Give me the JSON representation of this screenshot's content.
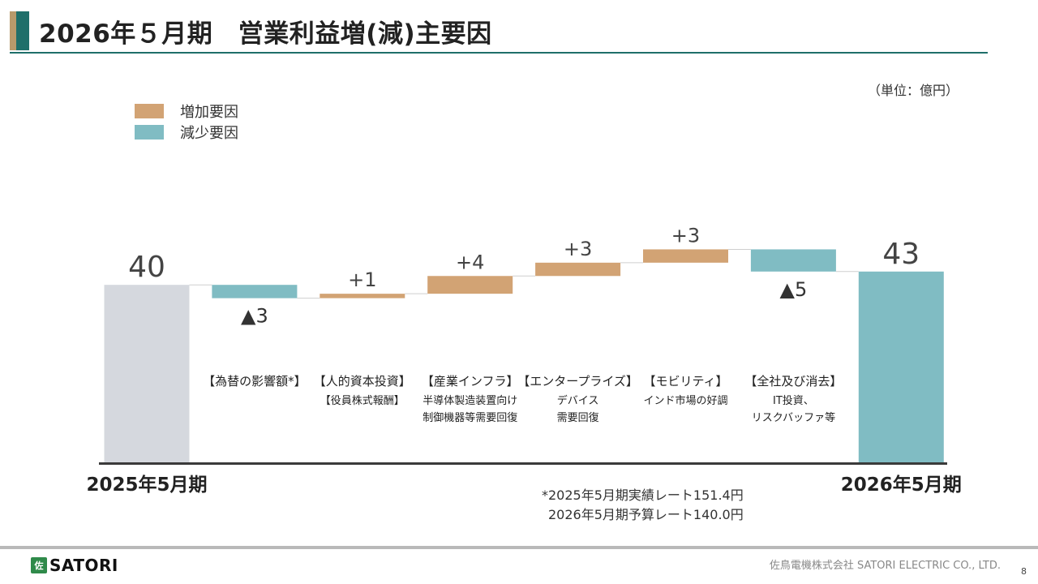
{
  "title": "2026年５月期　営業利益増(減)主要因",
  "unit_label": "（単位：億円）",
  "legend": [
    {
      "label": "増加要因",
      "color": "#d2a374"
    },
    {
      "label": "減少要因",
      "color": "#80bcc3"
    }
  ],
  "chart_data": {
    "type": "waterfall",
    "ylim": [
      0,
      50
    ],
    "baseline_color": "#d5d8de",
    "steps": [
      {
        "key": "start",
        "kind": "total",
        "value": 40,
        "value_label": "40",
        "color": "#d5d8de",
        "caption": [],
        "xlabel": "2025年5月期"
      },
      {
        "key": "fx",
        "kind": "delta",
        "value": -3,
        "value_label": "▲3",
        "color": "#80bcc3",
        "caption": [
          "【為替の影響額*】"
        ]
      },
      {
        "key": "human",
        "kind": "delta",
        "value": 1,
        "value_label": "+1",
        "color": "#d2a374",
        "caption": [
          "【人的資本投資】",
          "【役員株式報酬】"
        ]
      },
      {
        "key": "infra",
        "kind": "delta",
        "value": 4,
        "value_label": "+4",
        "color": "#d2a374",
        "caption": [
          "【産業インフラ】",
          "半導体製造装置向け",
          "制御機器等需要回復"
        ]
      },
      {
        "key": "enterprise",
        "kind": "delta",
        "value": 3,
        "value_label": "+3",
        "color": "#d2a374",
        "caption": [
          "【エンタープライズ】",
          "デバイス",
          "需要回復"
        ]
      },
      {
        "key": "mobility",
        "kind": "delta",
        "value": 3,
        "value_label": "+3",
        "color": "#d2a374",
        "caption": [
          "【モビリティ】",
          "インド市場の好調"
        ]
      },
      {
        "key": "corporate",
        "kind": "delta",
        "value": -5,
        "value_label": "▲5",
        "color": "#80bcc3",
        "caption": [
          "【全社及び消去】",
          "IT投資、",
          "リスクバッファ等"
        ]
      },
      {
        "key": "end",
        "kind": "total",
        "value": 43,
        "value_label": "43",
        "color": "#80bcc3",
        "caption": [],
        "xlabel": "2026年5月期"
      }
    ]
  },
  "footnote": [
    "*2025年5月期実績レート151.4円",
    "2026年5月期予算レート140.0円"
  ],
  "footer": {
    "logo_mark": "佐",
    "logo_text": "SATORI",
    "company": "佐鳥電機株式会社  SATORI ELECTRIC CO., LTD.",
    "page": "8"
  }
}
